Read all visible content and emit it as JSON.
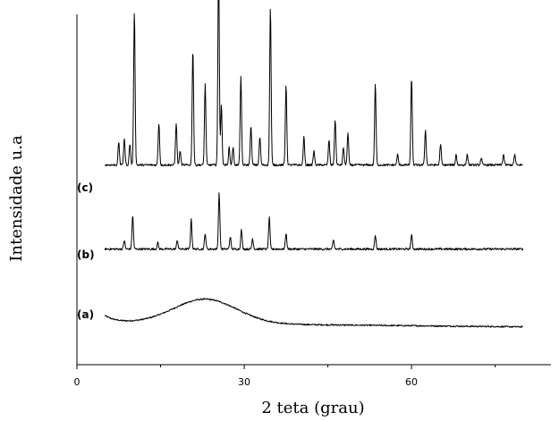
{
  "chart_data": {
    "type": "line",
    "title": "",
    "xlabel": "2 teta (grau)",
    "ylabel": "Intensidade u.a",
    "xlim": [
      0,
      85
    ],
    "xticks": [
      0,
      30,
      60
    ],
    "yticks": [],
    "grid": false,
    "legend": "none",
    "series": [
      {
        "name": "(a)",
        "baseline": 0.12,
        "amorphous_hump": {
          "center": 23,
          "height": 0.07,
          "width": 5
        },
        "peaks": []
      },
      {
        "name": "(b)",
        "baseline": 0.33,
        "peaks": [
          [
            8.5,
            0.025
          ],
          [
            10.0,
            0.095
          ],
          [
            14.5,
            0.018
          ],
          [
            18.0,
            0.025
          ],
          [
            20.5,
            0.085
          ],
          [
            23.0,
            0.045
          ],
          [
            25.5,
            0.16
          ],
          [
            27.5,
            0.035
          ],
          [
            29.5,
            0.055
          ],
          [
            31.5,
            0.03
          ],
          [
            34.5,
            0.09
          ],
          [
            37.5,
            0.045
          ],
          [
            46.0,
            0.025
          ],
          [
            53.5,
            0.04
          ],
          [
            60.0,
            0.04
          ]
        ]
      },
      {
        "name": "(c)",
        "baseline": 0.57,
        "peaks": [
          [
            7.5,
            0.065
          ],
          [
            8.5,
            0.075
          ],
          [
            9.5,
            0.06
          ],
          [
            10.3,
            0.44
          ],
          [
            14.7,
            0.12
          ],
          [
            17.8,
            0.12
          ],
          [
            18.5,
            0.04
          ],
          [
            20.8,
            0.33
          ],
          [
            23.0,
            0.23
          ],
          [
            25.4,
            0.57
          ],
          [
            25.9,
            0.17
          ],
          [
            27.3,
            0.05
          ],
          [
            28.0,
            0.05
          ],
          [
            29.4,
            0.25
          ],
          [
            31.2,
            0.11
          ],
          [
            32.8,
            0.08
          ],
          [
            34.7,
            0.45
          ],
          [
            37.5,
            0.23
          ],
          [
            40.7,
            0.08
          ],
          [
            42.5,
            0.04
          ],
          [
            45.2,
            0.07
          ],
          [
            46.3,
            0.13
          ],
          [
            47.8,
            0.05
          ],
          [
            48.6,
            0.09
          ],
          [
            53.5,
            0.23
          ],
          [
            57.5,
            0.03
          ],
          [
            60.0,
            0.25
          ],
          [
            62.5,
            0.1
          ],
          [
            65.2,
            0.06
          ],
          [
            68.0,
            0.03
          ],
          [
            70.0,
            0.03
          ],
          [
            72.5,
            0.02
          ],
          [
            76.5,
            0.03
          ],
          [
            78.5,
            0.03
          ]
        ]
      }
    ],
    "x_start": 5,
    "x_end": 80
  },
  "labels": {
    "series_a": "(a)",
    "series_b": "(b)",
    "series_c": "(c)",
    "tick_0": "0",
    "tick_30": "30",
    "tick_60": "60",
    "xlabel": "2 teta (grau)",
    "ylabel": "Intensidade u.a"
  }
}
